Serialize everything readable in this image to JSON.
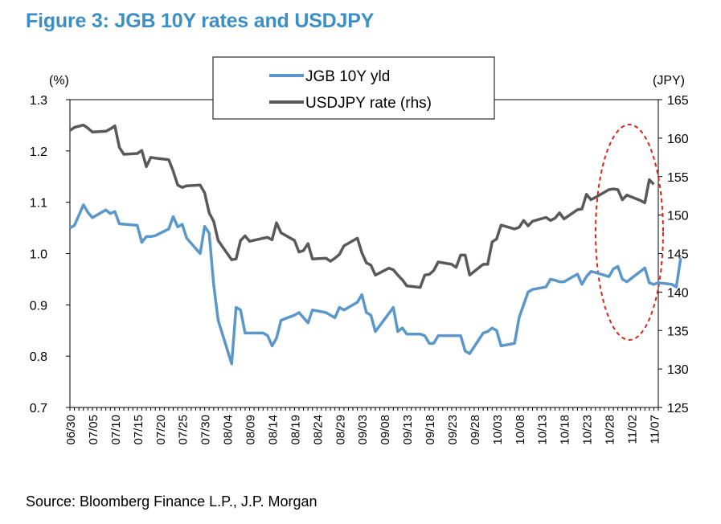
{
  "title": "Figure 3: JGB 10Y rates and USDJPY",
  "source": "Source: Bloomberg Finance L.P., J.P. Morgan",
  "colors": {
    "title": "#3C8FC6",
    "jgb": "#5B97C8",
    "usdjpy": "#595959",
    "highlight": "#D9261C"
  },
  "chart_data": {
    "type": "line",
    "title": "Figure 3: JGB 10Y rates and USDJPY",
    "left_axis_unit": "(%)",
    "right_axis_unit": "(JPY)",
    "ylim_left": [
      0.7,
      1.3
    ],
    "ylim_right": [
      125,
      165
    ],
    "yticks_left": [
      "0.7",
      "0.8",
      "0.9",
      "1.0",
      "1.1",
      "1.2",
      "1.3"
    ],
    "yticks_right": [
      "125",
      "130",
      "135",
      "140",
      "145",
      "150",
      "155",
      "160",
      "165"
    ],
    "x_tick_labels": [
      "06/30",
      "07/05",
      "07/10",
      "07/15",
      "07/20",
      "07/25",
      "07/30",
      "08/04",
      "08/09",
      "08/14",
      "08/19",
      "08/24",
      "08/29",
      "09/03",
      "09/08",
      "09/13",
      "09/18",
      "09/23",
      "09/28",
      "10/03",
      "10/08",
      "10/13",
      "10/18",
      "10/23",
      "10/28",
      "11/02",
      "11/07"
    ],
    "legend": [
      "JGB 10Y yld",
      "USDJPY rate (rhs)"
    ],
    "legend_position": "top-center",
    "grid": false,
    "annotation": "red dashed ellipse highlighting late Oct - early Nov",
    "series": [
      {
        "name": "JGB 10Y yld",
        "axis": "left",
        "points": [
          [
            "06/30",
            1.05
          ],
          [
            "07/01",
            1.055
          ],
          [
            "07/03",
            1.095
          ],
          [
            "07/04",
            1.08
          ],
          [
            "07/05",
            1.07
          ],
          [
            "07/08",
            1.085
          ],
          [
            "07/09",
            1.078
          ],
          [
            "07/10",
            1.082
          ],
          [
            "07/11",
            1.058
          ],
          [
            "07/15",
            1.055
          ],
          [
            "07/16",
            1.022
          ],
          [
            "07/17",
            1.033
          ],
          [
            "07/18",
            1.033
          ],
          [
            "07/19",
            1.035
          ],
          [
            "07/22",
            1.048
          ],
          [
            "07/23",
            1.072
          ],
          [
            "07/24",
            1.052
          ],
          [
            "07/25",
            1.057
          ],
          [
            "07/26",
            1.03
          ],
          [
            "07/29",
            1.0
          ],
          [
            "07/30",
            1.053
          ],
          [
            "07/31",
            1.04
          ],
          [
            "08/01",
            0.94
          ],
          [
            "08/02",
            0.87
          ],
          [
            "08/05",
            0.785
          ],
          [
            "08/06",
            0.895
          ],
          [
            "08/07",
            0.89
          ],
          [
            "08/08",
            0.845
          ],
          [
            "08/09",
            0.845
          ],
          [
            "08/12",
            0.845
          ],
          [
            "08/13",
            0.84
          ],
          [
            "08/14",
            0.82
          ],
          [
            "08/15",
            0.835
          ],
          [
            "08/16",
            0.87
          ],
          [
            "08/19",
            0.88
          ],
          [
            "08/20",
            0.885
          ],
          [
            "08/21",
            0.875
          ],
          [
            "08/22",
            0.865
          ],
          [
            "08/23",
            0.89
          ],
          [
            "08/26",
            0.885
          ],
          [
            "08/27",
            0.88
          ],
          [
            "08/28",
            0.875
          ],
          [
            "08/29",
            0.895
          ],
          [
            "08/30",
            0.89
          ],
          [
            "09/02",
            0.905
          ],
          [
            "09/03",
            0.92
          ],
          [
            "09/04",
            0.885
          ],
          [
            "09/05",
            0.88
          ],
          [
            "09/06",
            0.848
          ],
          [
            "09/09",
            0.883
          ],
          [
            "09/10",
            0.895
          ],
          [
            "09/11",
            0.848
          ],
          [
            "09/12",
            0.855
          ],
          [
            "09/13",
            0.843
          ],
          [
            "09/16",
            0.843
          ],
          [
            "09/17",
            0.84
          ],
          [
            "09/18",
            0.825
          ],
          [
            "09/19",
            0.825
          ],
          [
            "09/20",
            0.84
          ],
          [
            "09/23",
            0.84
          ],
          [
            "09/24",
            0.84
          ],
          [
            "09/25",
            0.84
          ],
          [
            "09/26",
            0.81
          ],
          [
            "09/27",
            0.805
          ],
          [
            "09/30",
            0.845
          ],
          [
            "10/01",
            0.848
          ],
          [
            "10/02",
            0.855
          ],
          [
            "10/03",
            0.85
          ],
          [
            "10/04",
            0.82
          ],
          [
            "10/07",
            0.825
          ],
          [
            "10/08",
            0.875
          ],
          [
            "10/09",
            0.9
          ],
          [
            "10/10",
            0.925
          ],
          [
            "10/11",
            0.93
          ],
          [
            "10/14",
            0.935
          ],
          [
            "10/15",
            0.95
          ],
          [
            "10/16",
            0.948
          ],
          [
            "10/17",
            0.945
          ],
          [
            "10/18",
            0.945
          ],
          [
            "10/21",
            0.96
          ],
          [
            "10/22",
            0.94
          ],
          [
            "10/23",
            0.955
          ],
          [
            "10/24",
            0.965
          ],
          [
            "10/25",
            0.963
          ],
          [
            "10/28",
            0.955
          ],
          [
            "10/29",
            0.97
          ],
          [
            "10/30",
            0.975
          ],
          [
            "10/31",
            0.95
          ],
          [
            "11/01",
            0.945
          ],
          [
            "11/04",
            0.965
          ],
          [
            "11/05",
            0.972
          ],
          [
            "11/06",
            0.943
          ],
          [
            "11/07",
            0.94
          ],
          [
            "11/08",
            0.943
          ],
          [
            "11/11",
            0.94
          ],
          [
            "11/12",
            0.935
          ],
          [
            "11/13",
            0.992
          ]
        ]
      },
      {
        "name": "USDJPY rate (rhs)",
        "axis": "right",
        "points": [
          [
            "06/30",
            161.0
          ],
          [
            "07/01",
            161.4
          ],
          [
            "07/03",
            161.7
          ],
          [
            "07/04",
            161.3
          ],
          [
            "07/05",
            160.8
          ],
          [
            "07/08",
            160.9
          ],
          [
            "07/09",
            161.2
          ],
          [
            "07/10",
            161.6
          ],
          [
            "07/11",
            158.8
          ],
          [
            "07/12",
            157.9
          ],
          [
            "07/15",
            158.0
          ],
          [
            "07/16",
            158.4
          ],
          [
            "07/17",
            156.3
          ],
          [
            "07/18",
            157.5
          ],
          [
            "07/19",
            157.4
          ],
          [
            "07/22",
            157.2
          ],
          [
            "07/23",
            155.7
          ],
          [
            "07/24",
            153.9
          ],
          [
            "07/25",
            153.6
          ],
          [
            "07/26",
            153.8
          ],
          [
            "07/29",
            153.9
          ],
          [
            "07/30",
            152.9
          ],
          [
            "07/31",
            150.3
          ],
          [
            "08/01",
            149.2
          ],
          [
            "08/02",
            146.7
          ],
          [
            "08/05",
            144.2
          ],
          [
            "08/06",
            144.3
          ],
          [
            "08/07",
            146.7
          ],
          [
            "08/08",
            147.3
          ],
          [
            "08/09",
            146.6
          ],
          [
            "08/12",
            147.0
          ],
          [
            "08/13",
            147.1
          ],
          [
            "08/14",
            146.8
          ],
          [
            "08/15",
            149.0
          ],
          [
            "08/16",
            147.7
          ],
          [
            "08/19",
            146.7
          ],
          [
            "08/20",
            145.2
          ],
          [
            "08/21",
            145.4
          ],
          [
            "08/22",
            146.3
          ],
          [
            "08/23",
            144.3
          ],
          [
            "08/26",
            144.4
          ],
          [
            "08/27",
            144.0
          ],
          [
            "08/28",
            144.4
          ],
          [
            "08/29",
            144.9
          ],
          [
            "08/30",
            146.0
          ],
          [
            "09/02",
            147.0
          ],
          [
            "09/03",
            145.1
          ],
          [
            "09/04",
            143.8
          ],
          [
            "09/05",
            143.5
          ],
          [
            "09/06",
            142.2
          ],
          [
            "09/09",
            143.1
          ],
          [
            "09/10",
            142.9
          ],
          [
            "09/11",
            142.2
          ],
          [
            "09/12",
            141.6
          ],
          [
            "09/13",
            140.8
          ],
          [
            "09/16",
            140.6
          ],
          [
            "09/17",
            142.2
          ],
          [
            "09/18",
            142.3
          ],
          [
            "09/19",
            142.8
          ],
          [
            "09/20",
            143.9
          ],
          [
            "09/23",
            143.6
          ],
          [
            "09/24",
            143.2
          ],
          [
            "09/25",
            144.8
          ],
          [
            "09/26",
            144.8
          ],
          [
            "09/27",
            142.2
          ],
          [
            "09/30",
            143.6
          ],
          [
            "10/01",
            143.6
          ],
          [
            "10/02",
            146.5
          ],
          [
            "10/03",
            146.9
          ],
          [
            "10/04",
            148.7
          ],
          [
            "10/07",
            148.2
          ],
          [
            "10/08",
            148.4
          ],
          [
            "10/09",
            149.3
          ],
          [
            "10/10",
            148.6
          ],
          [
            "10/11",
            149.2
          ],
          [
            "10/14",
            149.7
          ],
          [
            "10/15",
            149.3
          ],
          [
            "10/16",
            149.6
          ],
          [
            "10/17",
            150.3
          ],
          [
            "10/18",
            149.5
          ],
          [
            "10/21",
            150.7
          ],
          [
            "10/22",
            150.8
          ],
          [
            "10/23",
            152.7
          ],
          [
            "10/24",
            152.0
          ],
          [
            "10/25",
            152.3
          ],
          [
            "10/28",
            153.3
          ],
          [
            "10/29",
            153.4
          ],
          [
            "10/30",
            153.3
          ],
          [
            "10/31",
            152.0
          ],
          [
            "11/01",
            152.6
          ],
          [
            "11/04",
            151.9
          ],
          [
            "11/05",
            151.6
          ],
          [
            "11/06",
            154.6
          ],
          [
            "11/07",
            154.0
          ]
        ]
      }
    ]
  }
}
